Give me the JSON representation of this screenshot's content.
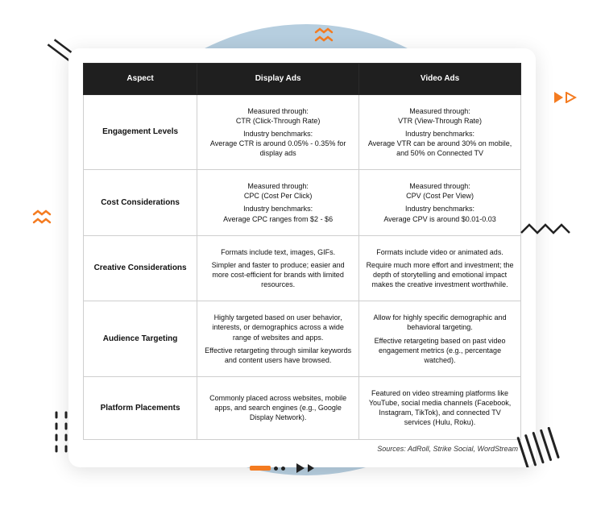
{
  "card": {
    "background": "#ffffff",
    "border_radius": 14,
    "shadow": "0 4px 24px rgba(0,0,0,0.12)"
  },
  "table": {
    "header_bg": "#1f1f1f",
    "header_text_color": "#ffffff",
    "border_color": "#cfcfcf",
    "font_size": 9,
    "columns": [
      "Aspect",
      "Display Ads",
      "Video Ads"
    ],
    "rows": [
      {
        "aspect": "Engagement Levels",
        "display": "Measured through:\nCTR (Click-Through Rate)\n\nIndustry benchmarks:\nAverage CTR is around 0.05% - 0.35% for display ads",
        "video": "Measured through:\nVTR (View-Through Rate)\n\nIndustry benchmarks:\nAverage VTR can be around 30% on mobile, and 50% on Connected TV"
      },
      {
        "aspect": "Cost Considerations",
        "display": "Measured through:\nCPC (Cost Per Click)\n\nIndustry benchmarks:\nAverage CPC ranges from $2 - $6",
        "video": "Measured through:\nCPV (Cost Per View)\n\nIndustry benchmarks:\nAverage CPV is around $0.01-0.03"
      },
      {
        "aspect": "Creative Considerations",
        "display": "Formats include text, images, GIFs.\n\nSimpler and faster to produce; easier and more cost-efficient for brands with limited resources.",
        "video": "Formats include video or animated ads.\n\nRequire much more effort and investment; the depth of storytelling and emotional impact makes the creative investment worthwhile."
      },
      {
        "aspect": "Audience Targeting",
        "display": "Highly targeted based on user behavior, interests, or demographics across a wide range of websites and apps.\n\nEffective retargeting through similar keywords and content users have browsed.",
        "video": "Allow for highly specific demographic and behavioral targeting.\n\nEffective retargeting based on past video engagement metrics (e.g., percentage watched)."
      },
      {
        "aspect": "Platform Placements",
        "display": "Commonly placed across websites, mobile apps, and search engines (e.g., Google Display Network).",
        "video": "Featured on video streaming platforms like YouTube, social media channels (Facebook, Instagram, TikTok), and connected TV services (Hulu, Roku)."
      }
    ]
  },
  "sources": "Sources: AdRoll, Strike Social, WordStream",
  "decorations": {
    "blob_color": "#b6cedf",
    "accent_orange": "#f47b20",
    "accent_black": "#222222"
  }
}
